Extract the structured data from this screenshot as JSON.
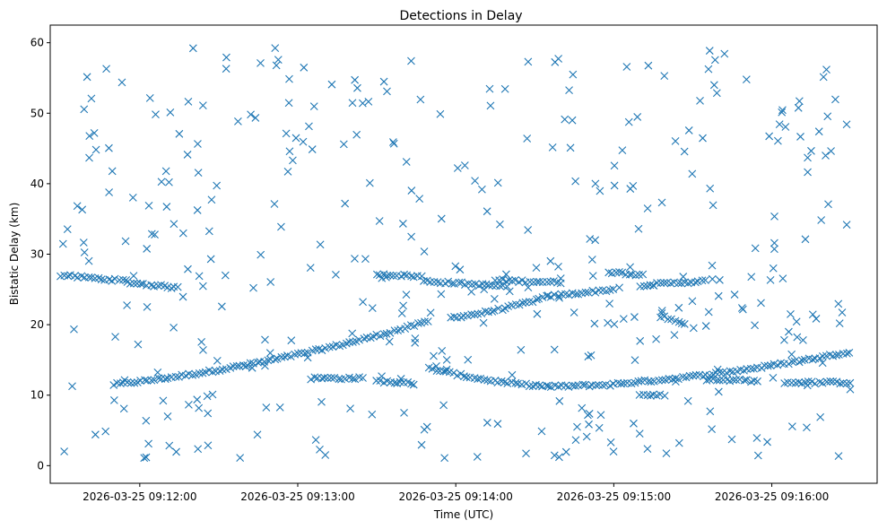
{
  "chart_data": {
    "type": "scatter",
    "title": "Detections in Delay",
    "xlabel": "Time (UTC)",
    "ylabel": "Bistatic Delay (km)",
    "marker": "x",
    "color": "#1f77b4",
    "grid": false,
    "legend": "none",
    "x_ticks": [
      {
        "t": "09:12:00",
        "label": "2026-03-25 09:12:00"
      },
      {
        "t": "09:13:00",
        "label": "2026-03-25 09:13:00"
      },
      {
        "t": "09:14:00",
        "label": "2026-03-25 09:14:00"
      },
      {
        "t": "09:15:00",
        "label": "2026-03-25 09:15:00"
      },
      {
        "t": "09:16:00",
        "label": "2026-03-25 09:16:00"
      }
    ],
    "xlim": [
      "2026-03-25 09:11:26",
      "2026-03-25 09:16:40"
    ],
    "y_ticks": [
      0,
      10,
      20,
      30,
      40,
      50,
      60
    ],
    "ylim": [
      -2.5,
      62.5
    ],
    "tracks": [
      {
        "x_start": "09:11:50",
        "x_end": "09:13:50",
        "y_start": 11.5,
        "y_end": 20.5,
        "shape": "rising"
      },
      {
        "x_start": "09:13:58",
        "x_end": "09:14:35",
        "y_start": 21.0,
        "y_end": 24.0,
        "shape": "rising"
      },
      {
        "x_start": "09:14:35",
        "x_end": "09:15:00",
        "y_start": 24.0,
        "y_end": 25.0,
        "shape": "flat"
      },
      {
        "x_start": "09:11:30",
        "x_end": "09:11:55",
        "y_start": 27.0,
        "y_end": 26.2,
        "shape": "flat"
      },
      {
        "x_start": "09:11:55",
        "x_end": "09:12:15",
        "y_start": 26.0,
        "y_end": 25.2,
        "shape": "flat"
      },
      {
        "x_start": "09:13:30",
        "x_end": "09:13:48",
        "y_start": 27.2,
        "y_end": 26.8,
        "shape": "flat"
      },
      {
        "x_start": "09:13:48",
        "x_end": "09:14:20",
        "y_start": 26.2,
        "y_end": 25.4,
        "shape": "flat"
      },
      {
        "x_start": "09:14:15",
        "x_end": "09:14:40",
        "y_start": 26.3,
        "y_end": 26.0,
        "shape": "flat"
      },
      {
        "x_start": "09:14:58",
        "x_end": "09:15:12",
        "y_start": 27.5,
        "y_end": 27.0,
        "shape": "flat"
      },
      {
        "x_start": "09:15:10",
        "x_end": "09:15:35",
        "y_start": 25.6,
        "y_end": 26.2,
        "shape": "flat"
      },
      {
        "x_start": "09:13:50",
        "x_end": "09:14:35",
        "y_start": 13.8,
        "y_end": 11.3,
        "shape": "falling"
      },
      {
        "x_start": "09:14:35",
        "x_end": "09:15:00",
        "y_start": 11.2,
        "y_end": 11.5,
        "shape": "flat"
      },
      {
        "x_start": "09:15:00",
        "x_end": "09:16:30",
        "y_start": 11.6,
        "y_end": 16.2,
        "shape": "rising"
      },
      {
        "x_start": "09:15:10",
        "x_end": "09:15:20",
        "y_start": 10.0,
        "y_end": 10.0,
        "shape": "flat"
      },
      {
        "x_start": "09:15:18",
        "x_end": "09:15:28",
        "y_start": 21.2,
        "y_end": 20.0,
        "shape": "flat"
      },
      {
        "x_start": "09:13:05",
        "x_end": "09:13:25",
        "y_start": 12.4,
        "y_end": 12.4,
        "shape": "flat"
      },
      {
        "x_start": "09:13:30",
        "x_end": "09:13:45",
        "y_start": 12.0,
        "y_end": 11.6,
        "shape": "flat"
      },
      {
        "x_start": "09:16:05",
        "x_end": "09:16:30",
        "y_start": 11.8,
        "y_end": 11.8,
        "shape": "flat"
      },
      {
        "x_start": "09:15:35",
        "x_end": "09:15:55",
        "y_start": 12.2,
        "y_end": 12.0,
        "shape": "flat"
      }
    ],
    "clutter_points": 380,
    "clutter_range": {
      "x": [
        "09:11:30",
        "09:16:30"
      ],
      "y": [
        1,
        59.5
      ]
    }
  }
}
